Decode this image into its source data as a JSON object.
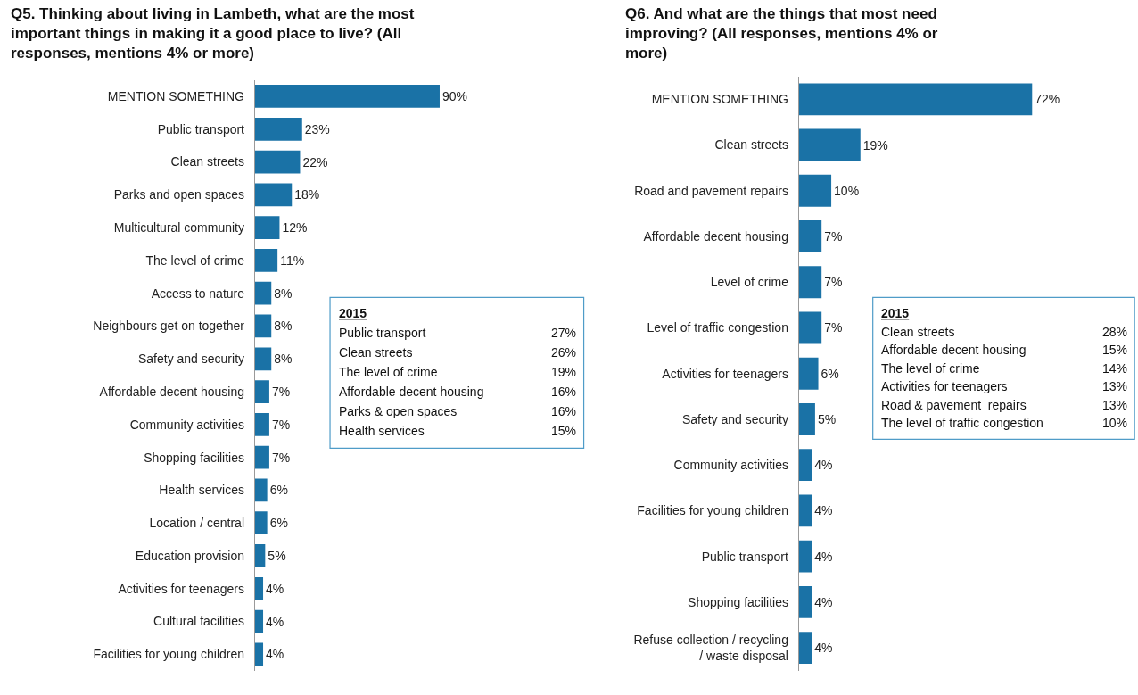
{
  "chart_data": [
    {
      "type": "bar",
      "orientation": "horizontal",
      "title": "Q5. Thinking about living in Lambeth, what are the most important things in making it a good place to live? (All responses, mentions 4% or more)",
      "categories": [
        "MENTION SOMETHING",
        "Public transport",
        "Clean streets",
        "Parks and open spaces",
        "Multicultural community",
        "The level of crime",
        "Access to nature",
        "Neighbours get on together",
        "Safety and security",
        "Affordable decent housing",
        "Community activities",
        "Shopping facilities",
        "Health services",
        "Location / central",
        "Education provision",
        "Activities for teenagers",
        "Cultural facilities",
        "Facilities for young children"
      ],
      "values": [
        90,
        23,
        22,
        18,
        12,
        11,
        8,
        8,
        8,
        7,
        7,
        7,
        6,
        6,
        5,
        4,
        4,
        4
      ],
      "value_labels": [
        "90%",
        "23%",
        "22%",
        "18%",
        "12%",
        "11%",
        "8%",
        "8%",
        "8%",
        "7%",
        "7%",
        "7%",
        "6%",
        "6%",
        "5%",
        "4%",
        "4%",
        "4%"
      ],
      "color": "#1a72a6",
      "tick_labels": "y",
      "annotations": [
        "2015",
        "Public transport",
        "27%",
        "Clean streets",
        "26%",
        "The level of crime",
        "19%",
        "Affordable decent housing",
        "16%",
        "Parks & open spaces",
        "16%",
        "Health services",
        "15%"
      ]
    },
    {
      "type": "bar",
      "orientation": "horizontal",
      "title": "Q6. And what are the things that most need improving? (All responses, mentions 4% or more)",
      "categories": [
        "MENTION SOMETHING",
        "Clean streets",
        "Road and pavement repairs",
        "Affordable decent housing",
        "Level of crime",
        "Level of traffic congestion",
        "Activities for teenagers",
        "Safety and security",
        "Community activities",
        "Facilities for young children",
        "Public transport",
        "Shopping facilities",
        "Refuse collection / recycling / waste disposal"
      ],
      "values": [
        72,
        19,
        10,
        7,
        7,
        7,
        6,
        5,
        4,
        4,
        4,
        4,
        4
      ],
      "value_labels": [
        "72%",
        "19%",
        "10%",
        "7%",
        "7%",
        "7%",
        "6%",
        "5%",
        "4%",
        "4%",
        "4%",
        "4%",
        "4%"
      ],
      "color": "#1a72a6",
      "tick_labels": "y",
      "annotations": [
        "2015",
        "Clean streets",
        "28%",
        "Affordable decent housing",
        "15%",
        "The level of crime",
        "14%",
        "Activities for teenagers",
        "13%",
        "Road & pavement  repairs",
        "13%",
        "The level of traffic congestion",
        "10%"
      ]
    }
  ]
}
